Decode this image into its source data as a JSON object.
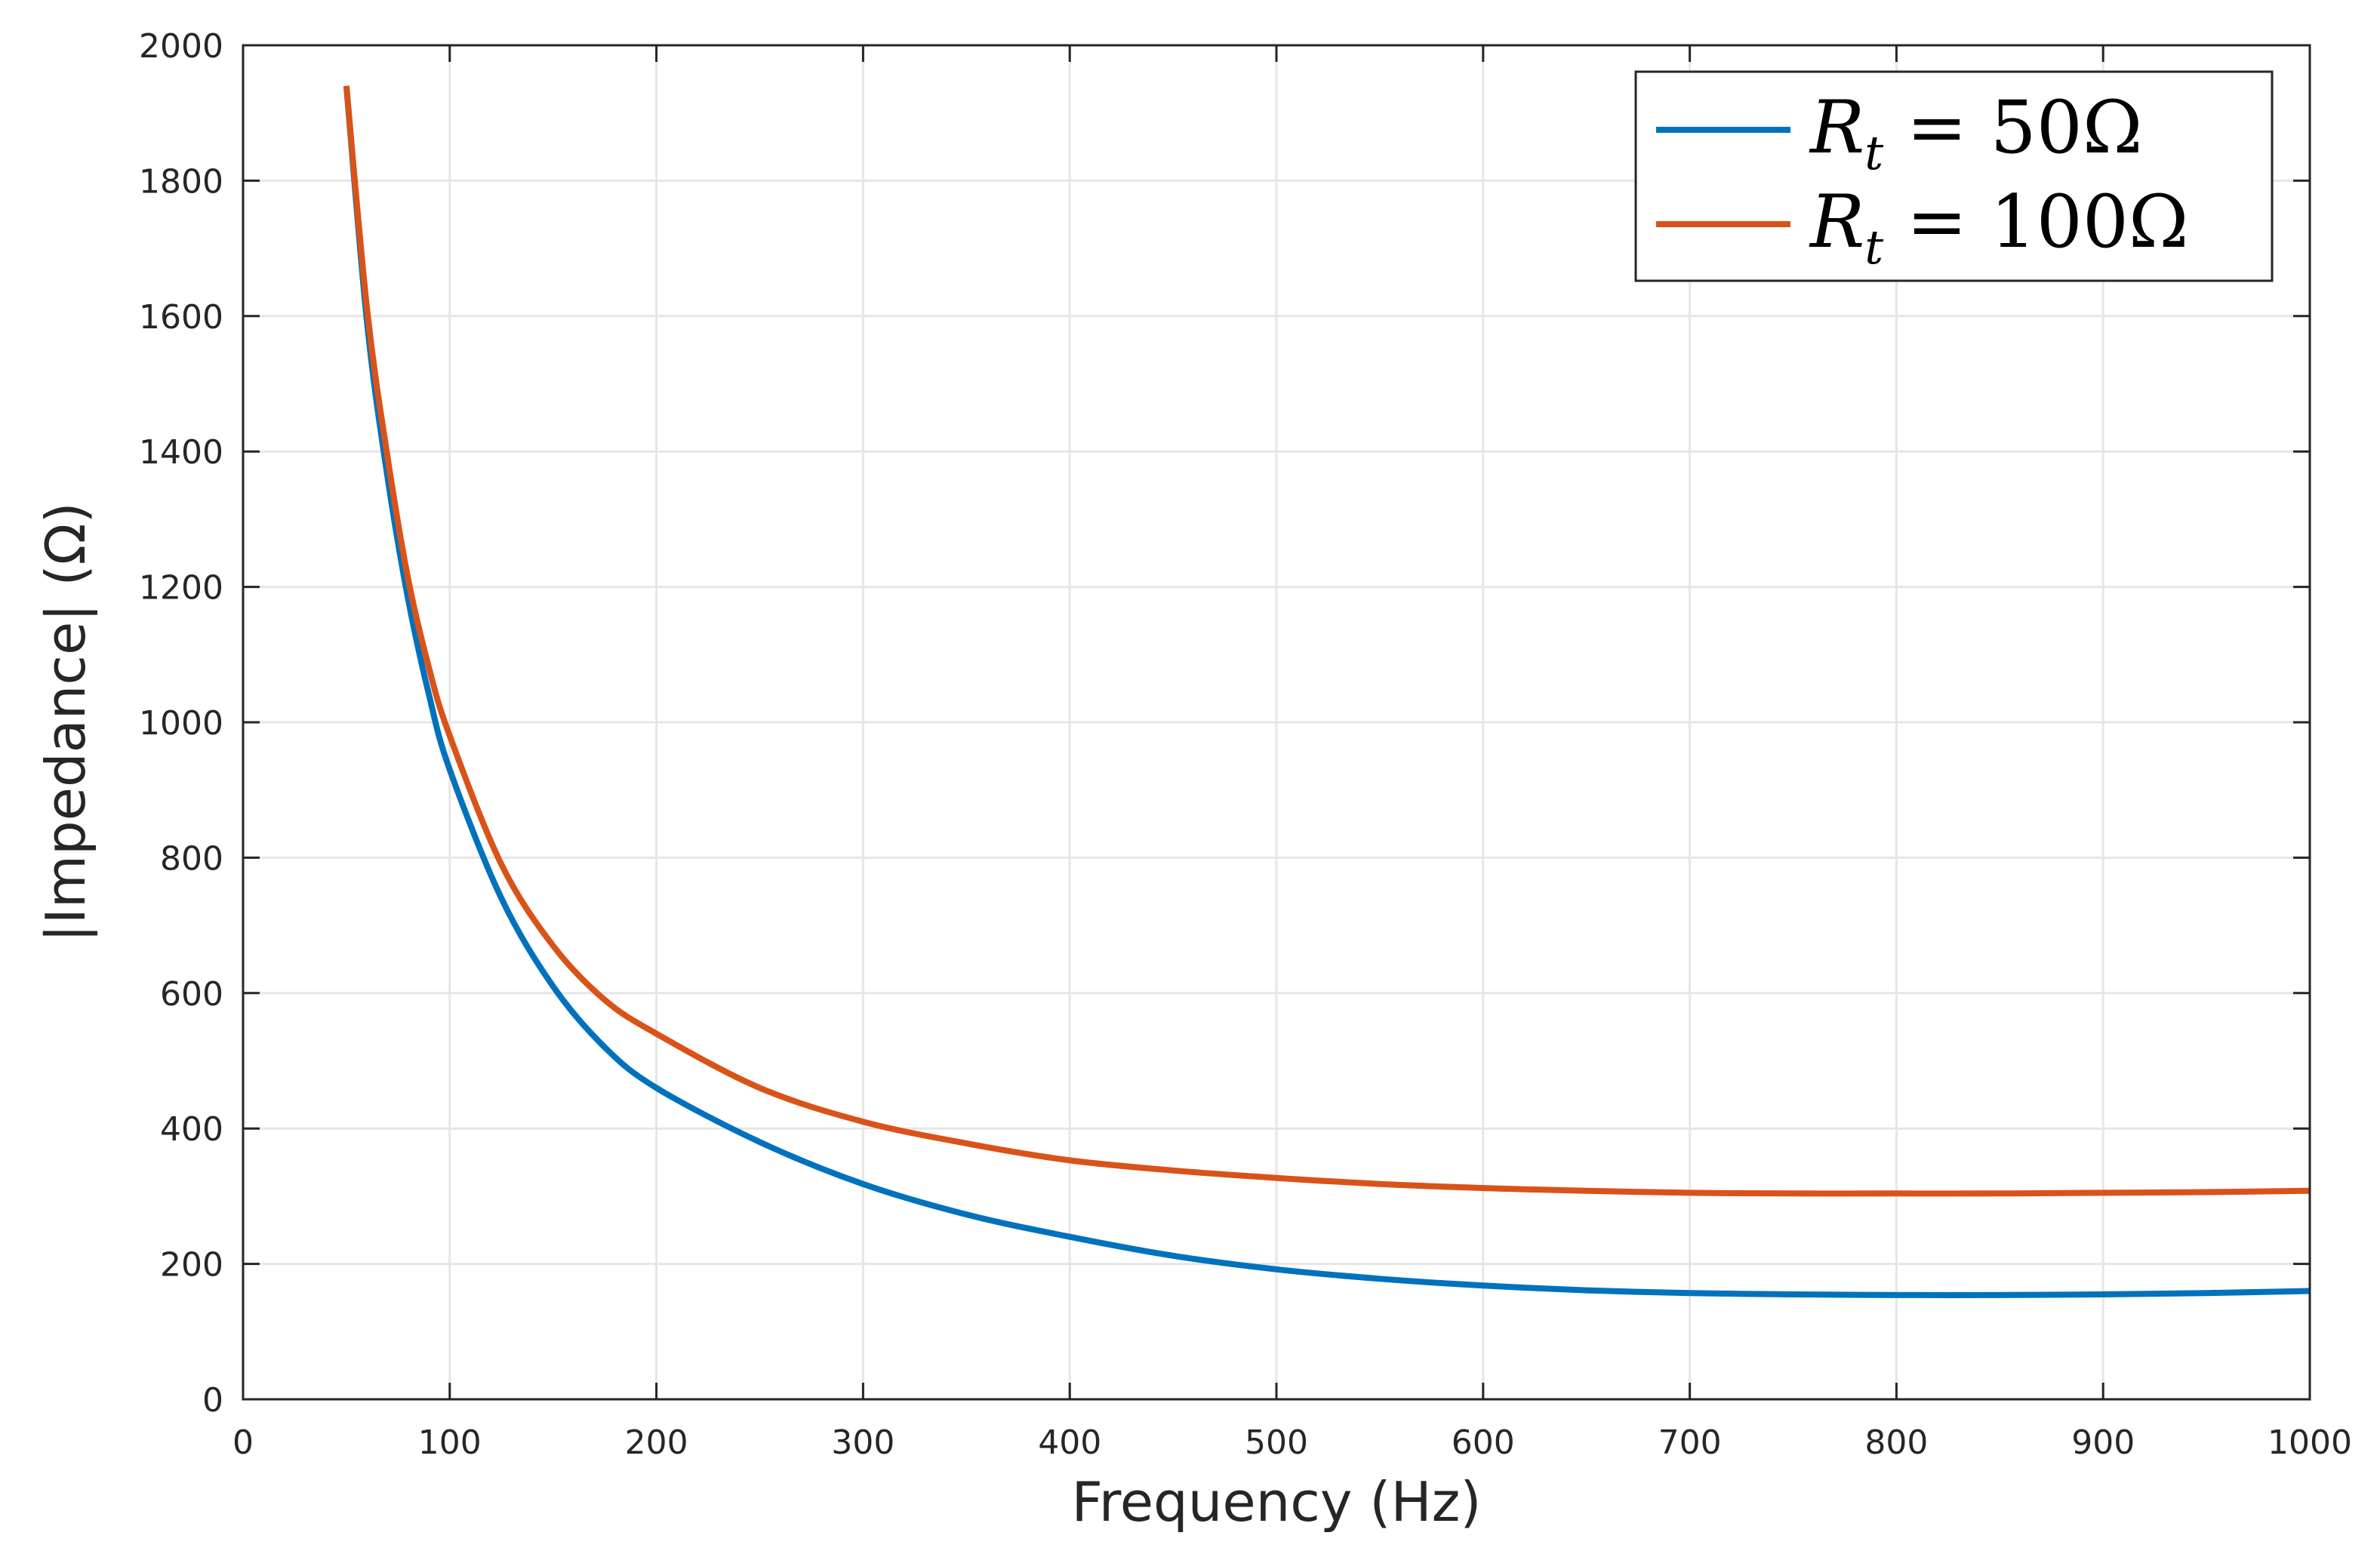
{
  "chart_data": {
    "type": "line",
    "title": "",
    "xlabel": "Frequency (Hz)",
    "ylabel": "|Impedance| (Ω)",
    "xlim": [
      0,
      1000
    ],
    "ylim": [
      0,
      2000
    ],
    "x_ticks": [
      0,
      100,
      200,
      300,
      400,
      500,
      600,
      700,
      800,
      900,
      1000
    ],
    "y_ticks": [
      0,
      200,
      400,
      600,
      800,
      1000,
      1200,
      1400,
      1600,
      1800,
      2000
    ],
    "grid": true,
    "legend_position": "top-right",
    "series": [
      {
        "name": "Rt = 50Ω",
        "legend_main": "R",
        "legend_sub": "t",
        "legend_rest": " = 50Ω",
        "color": "#0072BD",
        "x": [
          50,
          60,
          70,
          80,
          90,
          100,
          125,
          150,
          175,
          200,
          250,
          300,
          350,
          400,
          450,
          500,
          550,
          600,
          650,
          700,
          750,
          800,
          850,
          900,
          950,
          1000
        ],
        "y": [
          1940,
          1590,
          1360,
          1180,
          1040,
          930,
          740,
          610,
          520,
          460,
          380,
          318,
          273,
          240,
          212,
          192,
          178,
          168,
          161,
          157,
          155,
          154,
          154,
          155,
          157,
          160
        ]
      },
      {
        "name": "Rt = 100Ω",
        "legend_main": "R",
        "legend_sub": "t",
        "legend_rest": " = 100Ω",
        "color": "#D95319",
        "x": [
          50,
          60,
          70,
          80,
          90,
          100,
          125,
          150,
          175,
          200,
          250,
          300,
          350,
          400,
          450,
          500,
          550,
          600,
          650,
          700,
          750,
          800,
          850,
          900,
          950,
          1000
        ],
        "y": [
          1940,
          1610,
          1390,
          1210,
          1080,
          980,
          790,
          670,
          590,
          540,
          460,
          410,
          378,
          353,
          338,
          327,
          318,
          312,
          308,
          305,
          304,
          304,
          304,
          305,
          306,
          308
        ]
      }
    ]
  }
}
